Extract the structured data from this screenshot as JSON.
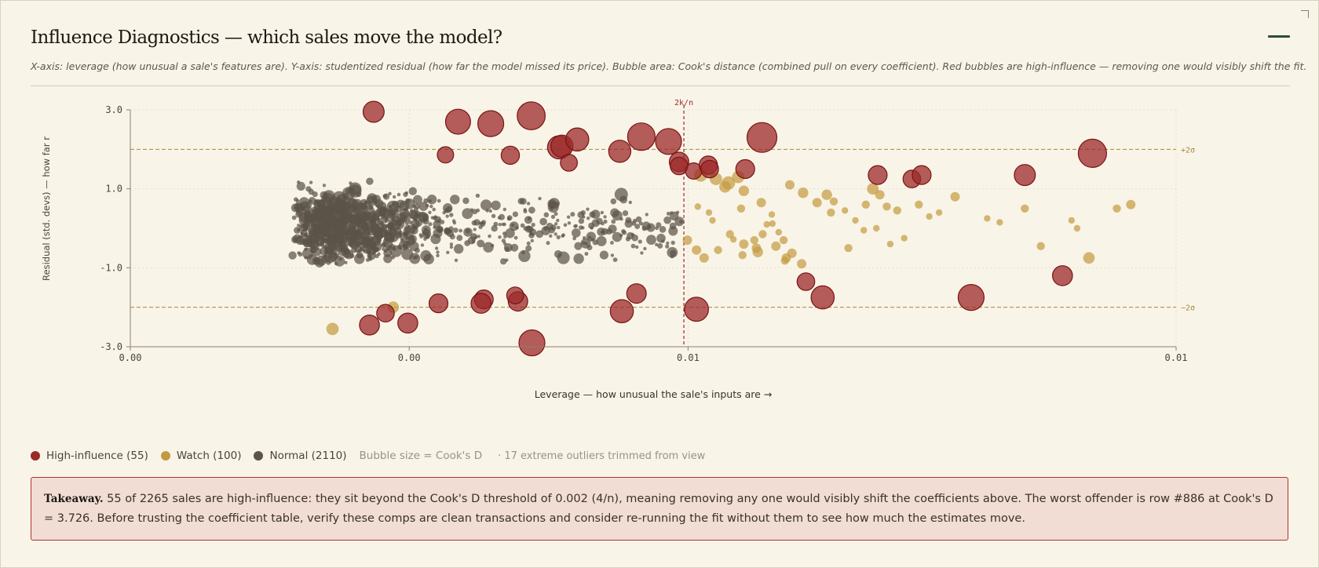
{
  "header": {
    "title": "Influence Diagnostics — which sales move the model?",
    "subtitle": "X-axis: leverage (how unusual a sale's features are). Y-axis: studentized residual (how far the model missed its price). Bubble area: Cook's distance (combined pull on every coefficient). Red bubbles are high-influence — removing one would visibly shift the fit."
  },
  "legend": {
    "high": "High-influence (55)",
    "watch": "Watch (100)",
    "normal": "Normal (2110)",
    "size_note": "Bubble size = Cook's D",
    "trim_note": "· 17 extreme outliers trimmed from view"
  },
  "takeaway": {
    "label": "Takeaway.",
    "text": "55 of 2265 sales are high-influence: they sit beyond the Cook's D threshold of 0.002 (4/n), meaning removing any one would visibly shift the coefficients above. The worst offender is row #886 at Cook's D = 3.726. Before trusting the coefficient table, verify these comps are clean transactions and consider re-running the fit without them to see how much the estimates move."
  },
  "colors": {
    "high": "#9b2a2a",
    "watch": "#c39a3e",
    "normal": "#5c5348",
    "threshold": "#a8893a",
    "leverage_line": "#9b2a2a"
  },
  "chart_data": {
    "type": "scatter",
    "title": "",
    "xlabel": "Leverage — how unusual the sale's inputs are →",
    "ylabel": "Residual (std. devs) — how far r",
    "xlim": [
      0.0,
      0.015
    ],
    "ylim": [
      -3.0,
      3.0
    ],
    "x_tick_values": [
      0.0,
      0.004,
      0.008,
      0.015
    ],
    "x_tick_labels": [
      "0.00",
      "0.00",
      "0.01",
      "0.01"
    ],
    "y_tick_values": [
      3,
      1,
      -1,
      -3
    ],
    "y_tick_labels": [
      "3.0",
      "1.0",
      "-1.0",
      "-3.0"
    ],
    "reference_lines": [
      {
        "axis": "y",
        "value": 2,
        "label": "+2σ"
      },
      {
        "axis": "y",
        "value": -2,
        "label": "−2σ"
      },
      {
        "axis": "x",
        "value": 0.00794,
        "label": "2k/n"
      }
    ],
    "grid": true,
    "legend_position": "below",
    "size_encoding": "Cook's D",
    "series": [
      {
        "name": "High-influence",
        "category": "high",
        "points": [
          {
            "x": 0.00349,
            "y": 2.95,
            "d": 0.02
          },
          {
            "x": 0.0047,
            "y": 2.7,
            "d": 0.028
          },
          {
            "x": 0.00517,
            "y": 2.65,
            "d": 0.03
          },
          {
            "x": 0.00575,
            "y": 2.85,
            "d": 0.035
          },
          {
            "x": 0.00615,
            "y": 2.05,
            "d": 0.024
          },
          {
            "x": 0.00619,
            "y": 2.08,
            "d": 0.022
          },
          {
            "x": 0.00629,
            "y": 1.66,
            "d": 0.013
          },
          {
            "x": 0.00545,
            "y": 1.85,
            "d": 0.015
          },
          {
            "x": 0.00452,
            "y": 1.86,
            "d": 0.012
          },
          {
            "x": 0.00641,
            "y": 2.25,
            "d": 0.024
          },
          {
            "x": 0.00702,
            "y": 1.95,
            "d": 0.022
          },
          {
            "x": 0.00733,
            "y": 2.32,
            "d": 0.034
          },
          {
            "x": 0.00772,
            "y": 2.2,
            "d": 0.03
          },
          {
            "x": 0.00787,
            "y": 1.68,
            "d": 0.017
          },
          {
            "x": 0.00787,
            "y": 1.58,
            "d": 0.014
          },
          {
            "x": 0.00808,
            "y": 1.45,
            "d": 0.012
          },
          {
            "x": 0.00829,
            "y": 1.6,
            "d": 0.015
          },
          {
            "x": 0.00831,
            "y": 1.5,
            "d": 0.014
          },
          {
            "x": 0.00882,
            "y": 1.5,
            "d": 0.016
          },
          {
            "x": 0.00906,
            "y": 2.3,
            "d": 0.042
          },
          {
            "x": 0.01072,
            "y": 1.35,
            "d": 0.016
          },
          {
            "x": 0.01121,
            "y": 1.25,
            "d": 0.014
          },
          {
            "x": 0.01135,
            "y": 1.35,
            "d": 0.016
          },
          {
            "x": 0.01283,
            "y": 1.35,
            "d": 0.02
          },
          {
            "x": 0.0138,
            "y": 1.9,
            "d": 0.036
          },
          {
            "x": 0.01337,
            "y": -1.2,
            "d": 0.018
          },
          {
            "x": 0.00969,
            "y": -1.35,
            "d": 0.014
          },
          {
            "x": 0.00993,
            "y": -1.75,
            "d": 0.024
          },
          {
            "x": 0.01206,
            "y": -1.75,
            "d": 0.03
          },
          {
            "x": 0.00812,
            "y": -2.05,
            "d": 0.026
          },
          {
            "x": 0.00705,
            "y": -2.1,
            "d": 0.024
          },
          {
            "x": 0.00726,
            "y": -1.65,
            "d": 0.017
          },
          {
            "x": 0.00556,
            "y": -1.85,
            "d": 0.017
          },
          {
            "x": 0.00507,
            "y": -1.8,
            "d": 0.016
          },
          {
            "x": 0.00503,
            "y": -1.9,
            "d": 0.018
          },
          {
            "x": 0.00442,
            "y": -1.9,
            "d": 0.016
          },
          {
            "x": 0.00398,
            "y": -2.4,
            "d": 0.018
          },
          {
            "x": 0.00366,
            "y": -2.15,
            "d": 0.014
          },
          {
            "x": 0.00343,
            "y": -2.45,
            "d": 0.018
          },
          {
            "x": 0.00552,
            "y": -1.7,
            "d": 0.013
          },
          {
            "x": 0.00576,
            "y": -2.9,
            "d": 0.03
          }
        ]
      },
      {
        "name": "Watch",
        "category": "watch",
        "points": [
          {
            "x": 0.00818,
            "y": 1.35,
            "d": 0.008
          },
          {
            "x": 0.0084,
            "y": 1.25,
            "d": 0.007
          },
          {
            "x": 0.00858,
            "y": 1.15,
            "d": 0.008
          },
          {
            "x": 0.00872,
            "y": 1.3,
            "d": 0.007
          },
          {
            "x": 0.0088,
            "y": 0.95,
            "d": 0.005
          },
          {
            "x": 0.00853,
            "y": 1.05,
            "d": 0.006
          },
          {
            "x": 0.00905,
            "y": 0.65,
            "d": 0.004
          },
          {
            "x": 0.0092,
            "y": 0.35,
            "d": 0.002
          },
          {
            "x": 0.00876,
            "y": 0.5,
            "d": 0.003
          },
          {
            "x": 0.00835,
            "y": 0.2,
            "d": 0.002
          },
          {
            "x": 0.0086,
            "y": -0.15,
            "d": 0.003
          },
          {
            "x": 0.00895,
            "y": -0.3,
            "d": 0.003
          },
          {
            "x": 0.00907,
            "y": -0.15,
            "d": 0.003
          },
          {
            "x": 0.0088,
            "y": -0.4,
            "d": 0.004
          },
          {
            "x": 0.009,
            "y": -0.6,
            "d": 0.005
          },
          {
            "x": 0.00843,
            "y": -0.55,
            "d": 0.003
          },
          {
            "x": 0.00799,
            "y": -0.3,
            "d": 0.004
          },
          {
            "x": 0.00812,
            "y": -0.55,
            "d": 0.004
          },
          {
            "x": 0.00823,
            "y": -0.75,
            "d": 0.004
          },
          {
            "x": 0.00926,
            "y": -0.45,
            "d": 0.004
          },
          {
            "x": 0.00937,
            "y": -0.3,
            "d": 0.003
          },
          {
            "x": 0.00865,
            "y": -0.28,
            "d": 0.002
          },
          {
            "x": 0.00814,
            "y": 0.55,
            "d": 0.002
          },
          {
            "x": 0.0083,
            "y": 0.4,
            "d": 0.002
          },
          {
            "x": 0.0093,
            "y": -0.1,
            "d": 0.002
          },
          {
            "x": 0.00913,
            "y": 0.1,
            "d": 0.002
          },
          {
            "x": 0.00898,
            "y": -0.5,
            "d": 0.004
          },
          {
            "x": 0.00941,
            "y": -0.75,
            "d": 0.004
          },
          {
            "x": 0.00965,
            "y": 0.9,
            "d": 0.005
          },
          {
            "x": 0.00985,
            "y": 0.65,
            "d": 0.004
          },
          {
            "x": 0.00999,
            "y": 0.85,
            "d": 0.005
          },
          {
            "x": 0.01005,
            "y": 0.4,
            "d": 0.003
          },
          {
            "x": 0.01025,
            "y": 0.45,
            "d": 0.002
          },
          {
            "x": 0.0104,
            "y": 0.2,
            "d": 0.002
          },
          {
            "x": 0.01055,
            "y": 0.6,
            "d": 0.003
          },
          {
            "x": 0.01065,
            "y": 1.0,
            "d": 0.006
          },
          {
            "x": 0.01075,
            "y": 0.85,
            "d": 0.004
          },
          {
            "x": 0.01085,
            "y": 0.55,
            "d": 0.003
          },
          {
            "x": 0.011,
            "y": 0.45,
            "d": 0.003
          },
          {
            "x": 0.0103,
            "y": -0.5,
            "d": 0.003
          },
          {
            "x": 0.01052,
            "y": -0.05,
            "d": 0.002
          },
          {
            "x": 0.0107,
            "y": 0.0,
            "d": 0.002
          },
          {
            "x": 0.0111,
            "y": -0.25,
            "d": 0.002
          },
          {
            "x": 0.01183,
            "y": 0.8,
            "d": 0.004
          },
          {
            "x": 0.01229,
            "y": 0.25,
            "d": 0.002
          },
          {
            "x": 0.01247,
            "y": 0.15,
            "d": 0.002
          },
          {
            "x": 0.01283,
            "y": 0.5,
            "d": 0.003
          },
          {
            "x": 0.01306,
            "y": -0.45,
            "d": 0.003
          },
          {
            "x": 0.0135,
            "y": 0.2,
            "d": 0.002
          },
          {
            "x": 0.01358,
            "y": 0.0,
            "d": 0.002
          },
          {
            "x": 0.01375,
            "y": -0.75,
            "d": 0.006
          },
          {
            "x": 0.01415,
            "y": 0.5,
            "d": 0.003
          },
          {
            "x": 0.01435,
            "y": 0.6,
            "d": 0.004
          },
          {
            "x": 0.0029,
            "y": -2.55,
            "d": 0.007
          },
          {
            "x": 0.00377,
            "y": -2.0,
            "d": 0.006
          },
          {
            "x": 0.01131,
            "y": 0.6,
            "d": 0.003
          },
          {
            "x": 0.01146,
            "y": 0.3,
            "d": 0.002
          },
          {
            "x": 0.00939,
            "y": -0.82,
            "d": 0.003
          },
          {
            "x": 0.00949,
            "y": -0.63,
            "d": 0.004
          },
          {
            "x": 0.00946,
            "y": 1.1,
            "d": 0.004
          },
          {
            "x": 0.00963,
            "y": -0.9,
            "d": 0.004
          },
          {
            "x": 0.00921,
            "y": 0.12,
            "d": 0.002
          },
          {
            "x": 0.00878,
            "y": -0.68,
            "d": 0.003
          },
          {
            "x": 0.01009,
            "y": 0.68,
            "d": 0.003
          },
          {
            "x": 0.0116,
            "y": 0.4,
            "d": 0.002
          },
          {
            "x": 0.0109,
            "y": -0.4,
            "d": 0.002
          }
        ]
      }
    ],
    "normal_count": 2110
  }
}
